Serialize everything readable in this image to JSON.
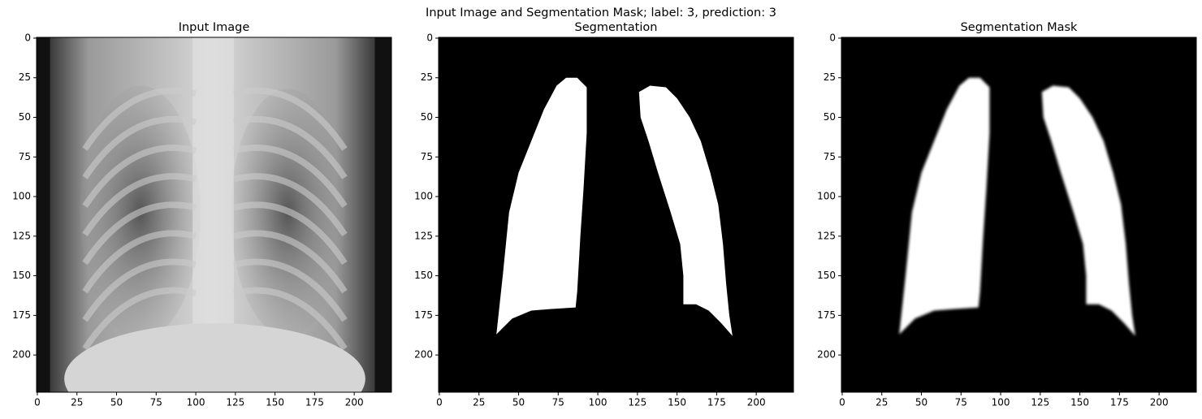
{
  "title": "Input Image and Segmentation Mask; label: 3, prediction: 3",
  "chart_data": [
    {
      "type": "image",
      "title": "Input Image",
      "xlim": [
        -0.5,
        223.5
      ],
      "ylim": [
        223.5,
        -0.5
      ],
      "xticks": [
        0,
        25,
        50,
        75,
        100,
        125,
        150,
        175,
        200
      ],
      "yticks": [
        0,
        25,
        50,
        75,
        100,
        125,
        150,
        175,
        200
      ]
    },
    {
      "type": "image",
      "title": "Segmentation",
      "xlim": [
        -0.5,
        223.5
      ],
      "ylim": [
        223.5,
        -0.5
      ],
      "xticks": [
        0,
        25,
        50,
        75,
        100,
        125,
        150,
        175,
        200
      ],
      "yticks": [
        0,
        25,
        50,
        75,
        100,
        125,
        150,
        175,
        200
      ]
    },
    {
      "type": "image",
      "title": "Segmentation Mask",
      "xlim": [
        -0.5,
        223.5
      ],
      "ylim": [
        223.5,
        -0.5
      ],
      "xticks": [
        0,
        25,
        50,
        75,
        100,
        125,
        150,
        175,
        200
      ],
      "yticks": [
        0,
        25,
        50,
        75,
        100,
        125,
        150,
        175,
        200
      ]
    }
  ]
}
